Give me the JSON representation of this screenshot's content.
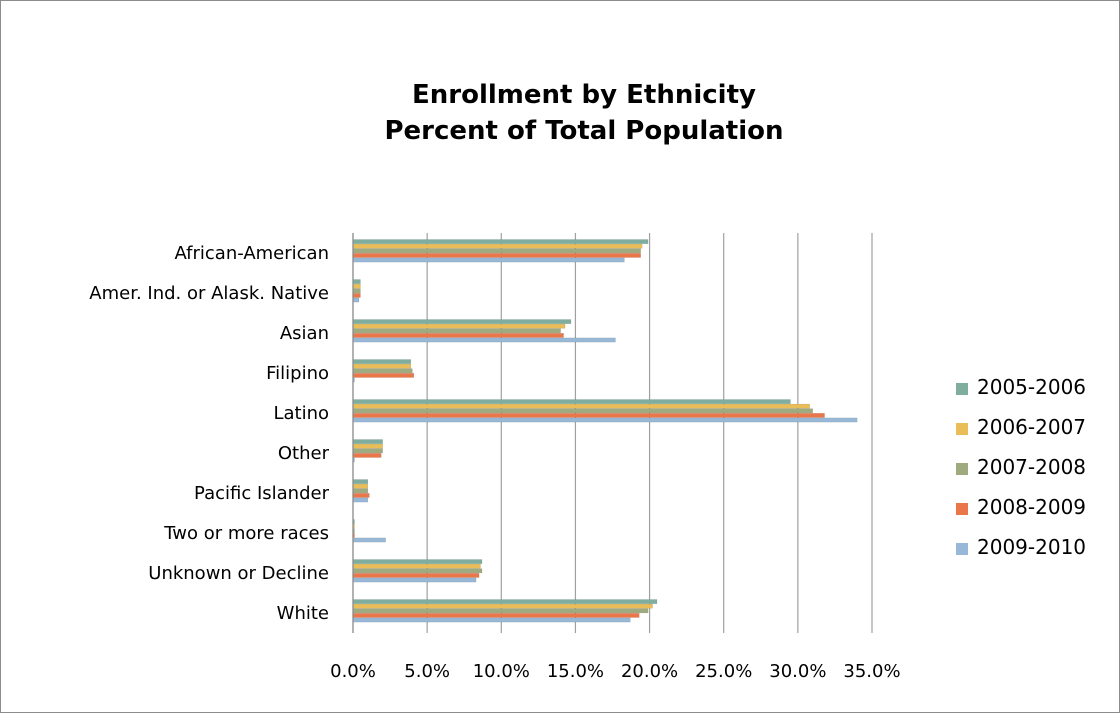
{
  "chart_data": {
    "type": "bar",
    "orientation": "horizontal",
    "title": [
      "Enrollment by Ethnicity",
      "Percent of Total Population"
    ],
    "categories": [
      "African-American",
      "Amer. Ind. or Alask. Native",
      "Asian",
      "Filipino",
      "Latino",
      "Other",
      "Pacific Islander",
      "Two or more races",
      "Unknown or Decline",
      "White"
    ],
    "series": [
      {
        "name": "2005-2006",
        "color": "#7fae9f",
        "values": [
          19.9,
          0.5,
          14.7,
          3.9,
          29.5,
          2.0,
          1.0,
          0.1,
          8.7,
          20.5
        ]
      },
      {
        "name": "2006-2007",
        "color": "#e9bd57",
        "values": [
          19.5,
          0.5,
          14.3,
          3.9,
          30.8,
          2.0,
          1.0,
          0.1,
          8.6,
          20.2
        ]
      },
      {
        "name": "2007-2008",
        "color": "#9fab7f",
        "values": [
          19.4,
          0.5,
          14.0,
          4.0,
          31.0,
          2.0,
          1.0,
          0.1,
          8.7,
          19.9
        ]
      },
      {
        "name": "2008-2009",
        "color": "#e9774a",
        "values": [
          19.4,
          0.5,
          14.2,
          4.1,
          31.8,
          1.9,
          1.1,
          0.1,
          8.5,
          19.3
        ]
      },
      {
        "name": "2009-2010",
        "color": "#97b8d6",
        "values": [
          18.3,
          0.4,
          17.7,
          0.1,
          34.0,
          0.1,
          1.0,
          2.2,
          8.3,
          18.7
        ]
      }
    ],
    "xlim": [
      0,
      35
    ],
    "xticks": [
      "0.0%",
      "5.0%",
      "10.0%",
      "15.0%",
      "20.0%",
      "25.0%",
      "30.0%",
      "35.0%"
    ],
    "grid": true,
    "legend_position": "right"
  }
}
